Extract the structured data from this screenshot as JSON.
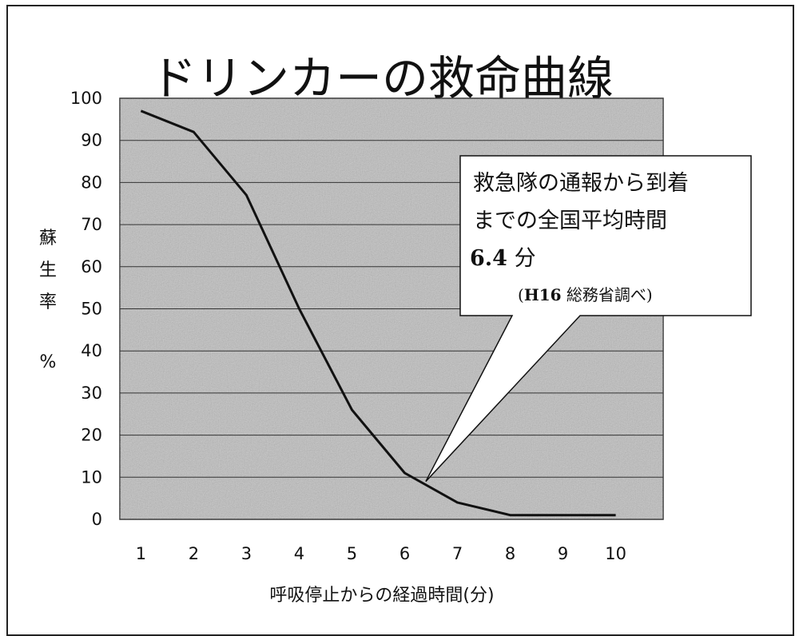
{
  "chart_data": {
    "type": "line",
    "title": "ドリンカーの救命曲線",
    "xlabel": "呼吸停止からの経過時間(分)",
    "ylabel": [
      "蘇",
      "生",
      "率",
      "%"
    ],
    "x": [
      1,
      2,
      3,
      4,
      5,
      6,
      7,
      8,
      9,
      10
    ],
    "x_ticks": [
      "1",
      "2",
      "3",
      "4",
      "5",
      "6",
      "7",
      "8",
      "9",
      "10"
    ],
    "y_ticks": [
      "0",
      "10",
      "20",
      "30",
      "40",
      "50",
      "60",
      "70",
      "80",
      "90",
      "100"
    ],
    "ylim": [
      0,
      100
    ],
    "grid": true,
    "series": [
      {
        "values": [
          97,
          92,
          77,
          50,
          26,
          11,
          4,
          1,
          1,
          1
        ]
      }
    ],
    "annotation": {
      "line1": "救急隊の通報から到着",
      "line2": "までの全国平均時間",
      "value_num": "6.4",
      "value_unit": " 分",
      "source_open": "(",
      "source_bold": "H16",
      "source_rest": " 総務省調べ)",
      "pointer_x": 6.4,
      "pointer_y": 9
    }
  },
  "colors": {
    "plot_bg": "#bdbdbd",
    "grid": "#333333",
    "line": "#111111",
    "callout_bg": "#ffffff"
  }
}
